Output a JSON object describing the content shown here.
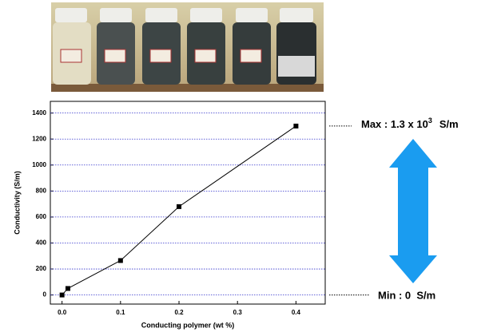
{
  "chart_data": {
    "type": "line",
    "x_label": "Conducting polymer (wt %)",
    "y_label": "Conductivity (S/m)",
    "x": [
      0,
      0.01,
      0.1,
      0.2,
      0.4
    ],
    "series": [
      {
        "color": "#000000",
        "values": [
          0,
          50,
          265,
          680,
          1300
        ]
      }
    ],
    "xlim": [
      -0.02,
      0.45
    ],
    "ylim": [
      -70,
      1490
    ],
    "xticks": [
      {
        "value": 0,
        "label": "0.0"
      },
      0.1,
      0.2,
      0.3,
      0.4
    ],
    "yticks": [
      0,
      200,
      400,
      600,
      800,
      1000,
      1200,
      1400
    ],
    "grid": true,
    "grid_color": "#3333cc",
    "annotations": {
      "max_text": "Max : 1.3 x 10",
      "max_exponent": "3",
      "max_unit": "S/m",
      "min_text": "Min : 0  S/m"
    }
  }
}
